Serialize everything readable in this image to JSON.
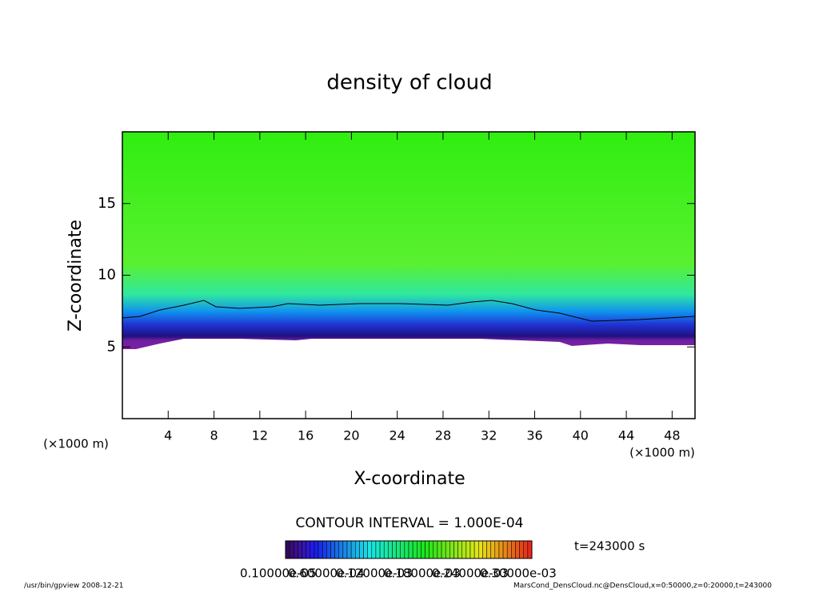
{
  "chart_data": {
    "type": "heatmap",
    "title": "density of cloud",
    "x_label": "X-coordinate",
    "y_label": "Z-coordinate",
    "x_unit": "(×1000 m)",
    "y_unit": "(×1000 m)",
    "xlim": [
      0,
      50
    ],
    "xticks": [
      4,
      8,
      12,
      16,
      20,
      24,
      28,
      32,
      36,
      40,
      44,
      48
    ],
    "ylim": [
      0,
      20
    ],
    "yticks": [
      5,
      10,
      15
    ],
    "contour_note": "CONTOUR INTERVAL = 1.000E-04",
    "time_note": "t=243000 s",
    "colorbar_labels": [
      "0.10000e-05",
      "0.60000e-04",
      "0.12000e-03",
      "0.18000e-03",
      "0.24000e-03",
      "0.30000e-03"
    ],
    "footer_left": "/usr/bin/gpview   2008-12-21",
    "footer_right": "MarsCond_DensCloud.nc@DensCloud,x=0:50000,z=0:20000,t=243000"
  }
}
